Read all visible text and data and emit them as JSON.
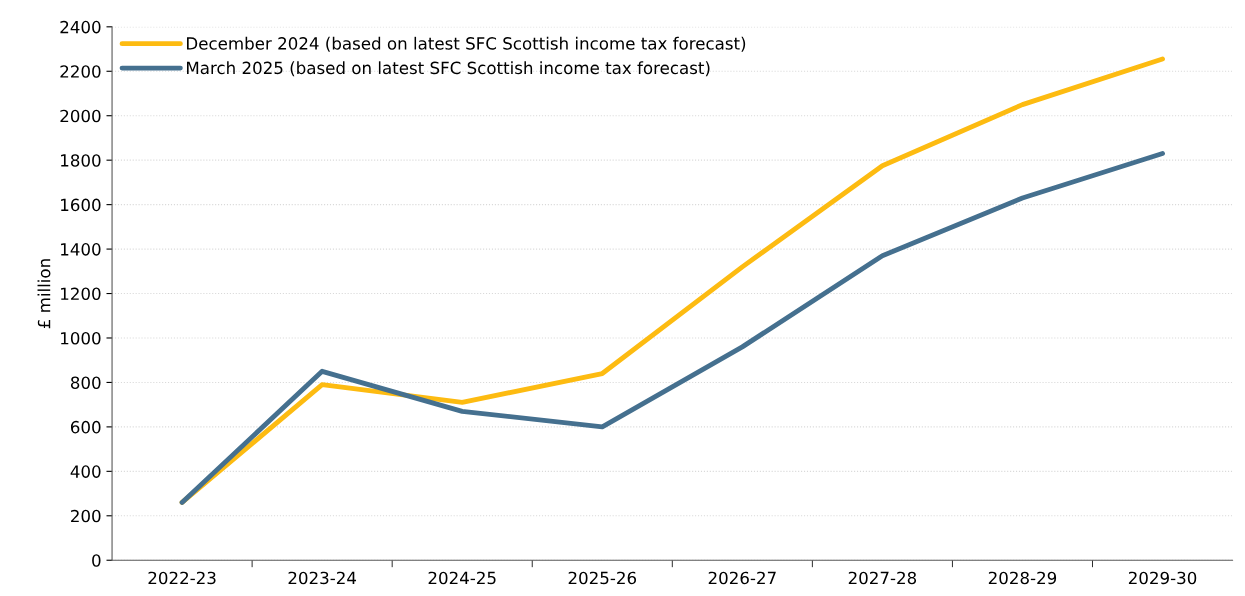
{
  "chart_data": {
    "type": "line",
    "ylabel": "£ million",
    "categories": [
      "2022-23",
      "2023-24",
      "2024-25",
      "2025-26",
      "2026-27",
      "2027-28",
      "2028-29",
      "2029-30"
    ],
    "series": [
      {
        "name": "December 2024 (based on latest SFC Scottish income tax forecast)",
        "color": "#fdbb11",
        "values": [
          260,
          790,
          710,
          840,
          1320,
          1775,
          2050,
          2255
        ]
      },
      {
        "name": "March 2025 (based on latest SFC Scottish income tax forecast)",
        "color": "#45708f",
        "values": [
          260,
          850,
          670,
          600,
          960,
          1370,
          1630,
          1830
        ]
      }
    ],
    "ylim": [
      0,
      2400
    ],
    "yticks": [
      0,
      200,
      400,
      600,
      800,
      1000,
      1200,
      1400,
      1600,
      1800,
      2000,
      2200,
      2400
    ],
    "grid": "y",
    "legend": "top left",
    "marker": "none",
    "line_style": "solid"
  }
}
